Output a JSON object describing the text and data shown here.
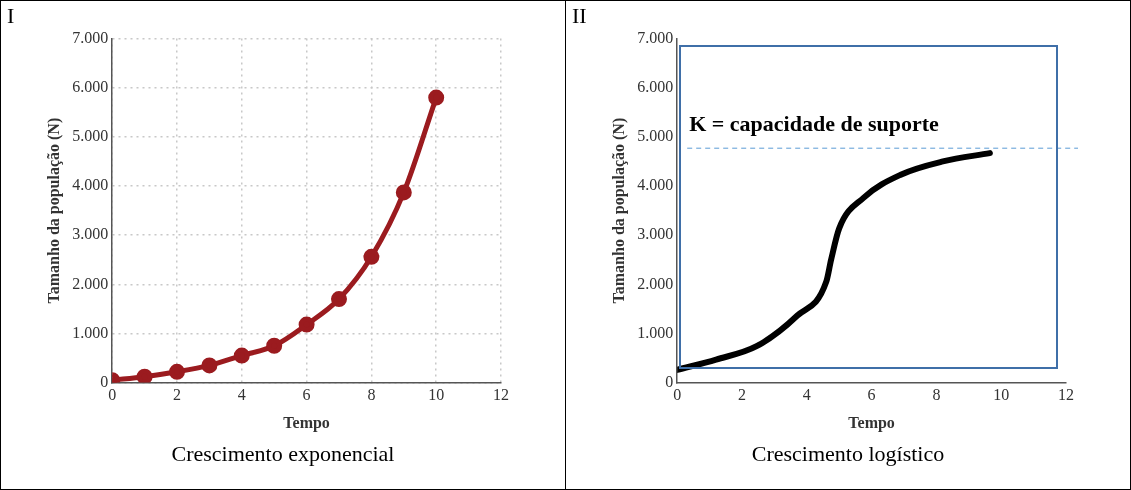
{
  "chart_data": [
    {
      "type": "line",
      "title": "I",
      "xlabel": "Tempo",
      "ylabel": "Tamanho da população (N)",
      "annotations": [
        "Crescimento exponencial"
      ],
      "x": [
        0,
        1,
        2,
        3,
        4,
        5,
        6,
        7,
        8,
        9,
        10
      ],
      "series": [
        {
          "color": "#9b1b1f",
          "values": [
            50,
            120,
            220,
            350,
            550,
            750,
            1180,
            1700,
            2560,
            3870,
            5800
          ]
        }
      ],
      "marker": "circle",
      "line_style": "solid",
      "grid": true,
      "xlim": [
        0,
        12
      ],
      "xticks": [
        0,
        2,
        4,
        6,
        8,
        10,
        12
      ],
      "ylim": [
        0,
        7000
      ],
      "yticks": [
        0,
        {
          "value": 1000,
          "label": "1.000"
        },
        {
          "value": 2000,
          "label": "2.000"
        },
        {
          "value": 3000,
          "label": "3.000"
        },
        {
          "value": 4000,
          "label": "4.000"
        },
        {
          "value": 5000,
          "label": "5.000"
        },
        {
          "value": 6000,
          "label": "6.000"
        },
        {
          "value": 7000,
          "label": "7.000"
        }
      ]
    },
    {
      "type": "line",
      "title": "II",
      "xlabel": "Tempo",
      "ylabel": "Tamanho da população (N)",
      "annotations": [
        "Crescimento logístico"
      ],
      "x": [
        0,
        1.2,
        2.45,
        3.7,
        4.6,
        4.75,
        5.0,
        5.75,
        6.9,
        8.2,
        9.65
      ],
      "series": [
        {
          "color": "#000000",
          "values": [
            260,
            470,
            740,
            1360,
            2050,
            2500,
            3140,
            3760,
            4230,
            4500,
            4670
          ]
        }
      ],
      "marker": "none",
      "line_style": "solid",
      "grid": false,
      "ref_lines": [
        {
          "axis": "y",
          "value": 4770,
          "label": "K = capacidade de suporte",
          "color": "#5b9bd5",
          "line_style": "dashed"
        }
      ],
      "xlim": [
        0,
        12
      ],
      "xticks": [
        0,
        2,
        4,
        6,
        8,
        10,
        12
      ],
      "ylim": [
        0,
        7000
      ],
      "yticks": [
        0,
        {
          "value": 1000,
          "label": "1.000"
        },
        {
          "value": 2000,
          "label": "2.000"
        },
        {
          "value": 3000,
          "label": "3.000"
        },
        {
          "value": 4000,
          "label": "4.000"
        },
        {
          "value": 5000,
          "label": "5.000"
        },
        {
          "value": 6000,
          "label": "6.000"
        },
        {
          "value": 7000,
          "label": "7.000"
        }
      ]
    }
  ]
}
